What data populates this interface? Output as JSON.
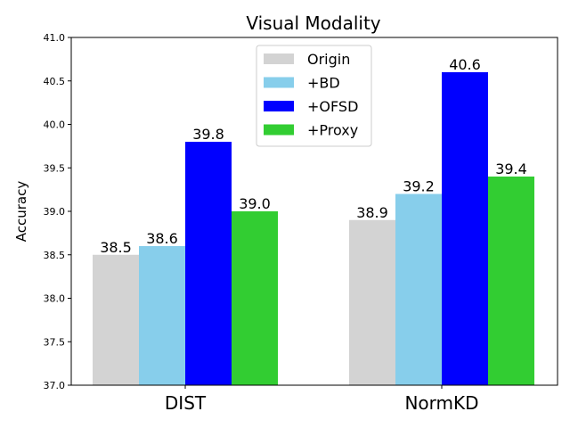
{
  "chart_data": {
    "type": "bar",
    "title": "Visual Modality",
    "xlabel": "",
    "ylabel": "Accuracy",
    "categories": [
      "DIST",
      "NormKD"
    ],
    "series": [
      {
        "name": "Origin",
        "values": [
          38.5,
          38.9
        ],
        "color": "#d3d3d3",
        "labels": [
          "38.5",
          "38.9"
        ]
      },
      {
        "name": "+BD",
        "values": [
          38.6,
          39.2
        ],
        "color": "#87ceeb",
        "labels": [
          "38.6",
          "39.2"
        ]
      },
      {
        "name": "+OFSD",
        "values": [
          39.8,
          40.6
        ],
        "color": "#0000ff",
        "labels": [
          "39.8",
          "40.6"
        ]
      },
      {
        "name": "+Proxy",
        "values": [
          39.0,
          39.4
        ],
        "color": "#32cd32",
        "labels": [
          "39.0",
          "39.4"
        ]
      }
    ],
    "ylim": [
      37.0,
      41.0
    ],
    "yticks": [
      "37.0",
      "37.5",
      "38.0",
      "38.5",
      "39.0",
      "39.5",
      "40.0",
      "40.5",
      "41.0"
    ],
    "legend_position": "top-center",
    "grid": false
  }
}
